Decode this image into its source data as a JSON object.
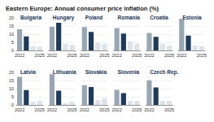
{
  "title": "Eastern Europe: Annual consumer price inflation (%)",
  "chart_data": [
    {
      "type": "bar",
      "title": "Bulgaria",
      "categories": [
        "2022",
        null,
        null,
        "2025"
      ],
      "values": [
        13.0,
        8.6,
        2.6,
        2.4
      ],
      "colors": [
        "#98a5b3",
        "#1f3b5c",
        "#dde3ea",
        "#dde3ea"
      ],
      "ylim": [
        0,
        20
      ],
      "yticks": [
        0,
        5,
        10,
        15,
        20
      ],
      "grid": true,
      "tick_labels": true
    },
    {
      "type": "bar",
      "title": "Hungary",
      "categories": [
        "2022",
        null,
        null,
        "2025"
      ],
      "values": [
        14.5,
        17.0,
        4.0,
        3.5
      ],
      "colors": [
        "#98a5b3",
        "#1f3b5c",
        "#dde3ea",
        "#dde3ea"
      ],
      "ylim": [
        0,
        20
      ],
      "yticks": [
        0,
        5,
        10,
        15,
        20
      ],
      "grid": true,
      "tick_labels": "x"
    },
    {
      "type": "bar",
      "title": "Poland",
      "categories": [
        "2022",
        null,
        null,
        "2025"
      ],
      "values": [
        14.4,
        11.4,
        4.5,
        4.0
      ],
      "colors": [
        "#98a5b3",
        "#1f3b5c",
        "#dde3ea",
        "#dde3ea"
      ],
      "ylim": [
        0,
        20
      ],
      "yticks": [
        0,
        5,
        10,
        15,
        20
      ],
      "grid": true,
      "tick_labels": "x"
    },
    {
      "type": "bar",
      "title": "Romania",
      "categories": [
        "2022",
        null,
        null,
        "2025"
      ],
      "values": [
        13.8,
        10.4,
        5.5,
        4.0
      ],
      "colors": [
        "#98a5b3",
        "#1f3b5c",
        "#dde3ea",
        "#dde3ea"
      ],
      "ylim": [
        0,
        20
      ],
      "yticks": [
        0,
        5,
        10,
        15,
        20
      ],
      "grid": true,
      "tick_labels": "x"
    },
    {
      "type": "bar",
      "title": "Croatia",
      "categories": [
        "2022",
        null,
        null,
        "2025"
      ],
      "values": [
        10.7,
        8.4,
        4.0,
        3.0
      ],
      "colors": [
        "#98a5b3",
        "#1f3b5c",
        "#dde3ea",
        "#dde3ea"
      ],
      "ylim": [
        0,
        20
      ],
      "yticks": [
        0,
        5,
        10,
        15,
        20
      ],
      "grid": true,
      "tick_labels": "x"
    },
    {
      "type": "bar",
      "title": "Estonia",
      "categories": [
        "2022",
        null,
        null,
        "2025"
      ],
      "values": [
        19.4,
        9.1,
        3.0,
        2.5
      ],
      "colors": [
        "#98a5b3",
        "#1f3b5c",
        "#dde3ea",
        "#dde3ea"
      ],
      "ylim": [
        0,
        20
      ],
      "yticks": [
        0,
        5,
        10,
        15,
        20
      ],
      "grid": true,
      "tick_labels": "x"
    },
    {
      "type": "bar",
      "title": "Latvia",
      "categories": [
        "2022",
        null,
        null,
        "2025"
      ],
      "values": [
        17.2,
        9.1,
        2.0,
        2.5
      ],
      "colors": [
        "#98a5b3",
        "#1f3b5c",
        "#dde3ea",
        "#dde3ea"
      ],
      "ylim": [
        0,
        20
      ],
      "yticks": [
        0,
        5,
        10,
        15,
        20
      ],
      "grid": true,
      "tick_labels": true
    },
    {
      "type": "bar",
      "title": "Lithuania",
      "categories": [
        "2022",
        null,
        null,
        "2025"
      ],
      "values": [
        18.9,
        8.7,
        1.0,
        2.0
      ],
      "colors": [
        "#98a5b3",
        "#1f3b5c",
        "#dde3ea",
        "#dde3ea"
      ],
      "ylim": [
        0,
        20
      ],
      "yticks": [
        0,
        5,
        10,
        15,
        20
      ],
      "grid": true,
      "tick_labels": "x"
    },
    {
      "type": "bar",
      "title": "Slovakia",
      "categories": [
        "2022",
        null,
        null,
        "2025"
      ],
      "values": [
        12.1,
        11.0,
        3.0,
        4.0
      ],
      "colors": [
        "#98a5b3",
        "#1f3b5c",
        "#dde3ea",
        "#dde3ea"
      ],
      "ylim": [
        0,
        20
      ],
      "yticks": [
        0,
        5,
        10,
        15,
        20
      ],
      "grid": true,
      "tick_labels": "x"
    },
    {
      "type": "bar",
      "title": "Slovenia",
      "categories": [
        "2022",
        null,
        null,
        "2025"
      ],
      "values": [
        9.3,
        7.2,
        2.5,
        2.5
      ],
      "colors": [
        "#98a5b3",
        "#1f3b5c",
        "#dde3ea",
        "#dde3ea"
      ],
      "ylim": [
        0,
        20
      ],
      "yticks": [
        0,
        5,
        10,
        15,
        20
      ],
      "grid": true,
      "tick_labels": "x"
    },
    {
      "type": "bar",
      "title": "Czech Rep.",
      "categories": [
        "2022",
        null,
        null,
        "2025"
      ],
      "values": [
        15.1,
        10.7,
        2.5,
        2.5
      ],
      "colors": [
        "#98a5b3",
        "#1f3b5c",
        "#dde3ea",
        "#dde3ea"
      ],
      "ylim": [
        0,
        20
      ],
      "yticks": [
        0,
        5,
        10,
        15,
        20
      ],
      "grid": true,
      "tick_labels": "x"
    }
  ]
}
